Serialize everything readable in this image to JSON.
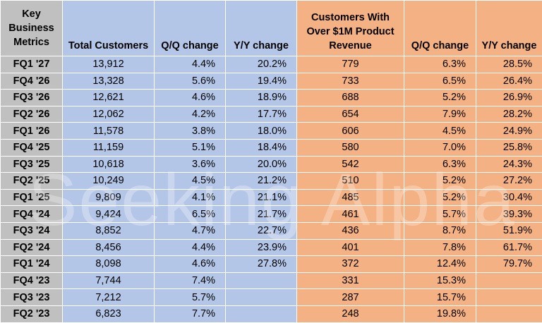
{
  "chart_data": {
    "type": "table",
    "columns": [
      "Key Business Metrics",
      "Total Customers",
      "Q/Q change",
      "Y/Y change",
      "Customers With Over $1M Product Revenue",
      "Q/Q change",
      "Y/Y change"
    ],
    "rows": [
      [
        "FQ1 '27",
        "13,912",
        "4.4%",
        "20.2%",
        "779",
        "6.3%",
        "28.5%"
      ],
      [
        "FQ4 '26",
        "13,328",
        "5.6%",
        "19.4%",
        "733",
        "6.5%",
        "26.4%"
      ],
      [
        "FQ3 '26",
        "12,621",
        "4.6%",
        "18.9%",
        "688",
        "5.2%",
        "26.9%"
      ],
      [
        "FQ2 '26",
        "12,062",
        "4.2%",
        "17.7%",
        "654",
        "7.9%",
        "28.2%"
      ],
      [
        "FQ1 '26",
        "11,578",
        "3.8%",
        "18.0%",
        "606",
        "4.5%",
        "24.9%"
      ],
      [
        "FQ4 '25",
        "11,159",
        "5.1%",
        "18.4%",
        "580",
        "7.0%",
        "25.8%"
      ],
      [
        "FQ3 '25",
        "10,618",
        "3.6%",
        "20.0%",
        "542",
        "6.3%",
        "24.3%"
      ],
      [
        "FQ2 '25",
        "10,249",
        "4.5%",
        "21.2%",
        "510",
        "5.2%",
        "27.2%"
      ],
      [
        "FQ1 '25",
        "9,809",
        "4.1%",
        "21.1%",
        "485",
        "5.2%",
        "30.4%"
      ],
      [
        "FQ4 '24",
        "9,424",
        "6.5%",
        "21.7%",
        "461",
        "5.7%",
        "39.3%"
      ],
      [
        "FQ3 '24",
        "8,852",
        "4.7%",
        "22.7%",
        "436",
        "8.7%",
        "51.9%"
      ],
      [
        "FQ2 '24",
        "8,456",
        "4.4%",
        "23.9%",
        "401",
        "7.8%",
        "61.7%"
      ],
      [
        "FQ1 '24",
        "8,098",
        "4.6%",
        "27.8%",
        "372",
        "12.4%",
        "79.7%"
      ],
      [
        "FQ4 '23",
        "7,744",
        "7.4%",
        "",
        "331",
        "15.3%",
        ""
      ],
      [
        "FQ3 '23",
        "7,212",
        "5.7%",
        "",
        "287",
        "15.7%",
        ""
      ],
      [
        "FQ2 '23",
        "6,823",
        "7.7%",
        "",
        "248",
        "19.8%",
        ""
      ]
    ],
    "watermark": "Seeking Alpha",
    "colors": {
      "metric_column": "#c0c0c0",
      "customers_columns": "#b4c6e7",
      "large_customers_columns": "#f4b183"
    }
  }
}
